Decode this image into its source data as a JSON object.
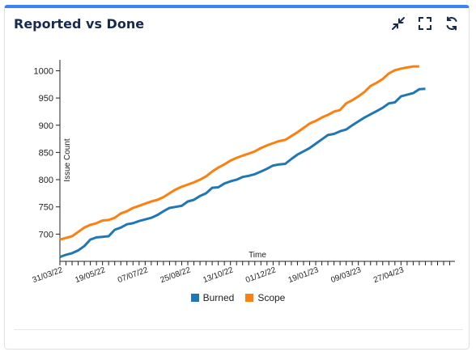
{
  "widget": {
    "title": "Reported vs Done",
    "icons": [
      "minimize-icon",
      "fullscreen-icon",
      "refresh-icon"
    ]
  },
  "colors": {
    "accent": "#3b82f6",
    "burned": "#1f77b4",
    "scope": "#ff7f0e"
  },
  "chart_data": {
    "type": "line",
    "xlabel": "Time",
    "ylabel": "Issue Count",
    "ylim": [
      650,
      1020
    ],
    "yticks": [
      700,
      750,
      800,
      850,
      900,
      950,
      1000
    ],
    "xlim": [
      "2022-03-31",
      "2023-06-28"
    ],
    "xtick_labels": [
      {
        "date": "2022-03-31",
        "label": "31/03/22"
      },
      {
        "date": "2022-05-19",
        "label": "19/05/22"
      },
      {
        "date": "2022-07-07",
        "label": "07/07/22"
      },
      {
        "date": "2022-08-25",
        "label": "25/08/22"
      },
      {
        "date": "2022-10-13",
        "label": "13/10/22"
      },
      {
        "date": "2022-12-01",
        "label": "01/12/22"
      },
      {
        "date": "2023-01-19",
        "label": "19/01/23"
      },
      {
        "date": "2023-03-09",
        "label": "09/03/23"
      },
      {
        "date": "2023-04-27",
        "label": "27/04/23"
      }
    ],
    "grid": false,
    "legend": "bottom-center",
    "series": [
      {
        "name": "Burned",
        "color": "#1f77b4",
        "points": [
          [
            "2022-03-31",
            658
          ],
          [
            "2022-04-07",
            662
          ],
          [
            "2022-04-14",
            665
          ],
          [
            "2022-04-21",
            670
          ],
          [
            "2022-04-28",
            678
          ],
          [
            "2022-05-05",
            690
          ],
          [
            "2022-05-12",
            694
          ],
          [
            "2022-05-19",
            695
          ],
          [
            "2022-05-26",
            696
          ],
          [
            "2022-06-02",
            708
          ],
          [
            "2022-06-09",
            712
          ],
          [
            "2022-06-16",
            718
          ],
          [
            "2022-06-23",
            720
          ],
          [
            "2022-06-30",
            724
          ],
          [
            "2022-07-07",
            727
          ],
          [
            "2022-07-14",
            730
          ],
          [
            "2022-07-21",
            735
          ],
          [
            "2022-07-28",
            742
          ],
          [
            "2022-08-04",
            748
          ],
          [
            "2022-08-11",
            750
          ],
          [
            "2022-08-18",
            752
          ],
          [
            "2022-08-25",
            760
          ],
          [
            "2022-09-01",
            763
          ],
          [
            "2022-09-08",
            770
          ],
          [
            "2022-09-15",
            775
          ],
          [
            "2022-09-22",
            785
          ],
          [
            "2022-09-29",
            786
          ],
          [
            "2022-10-06",
            793
          ],
          [
            "2022-10-13",
            797
          ],
          [
            "2022-10-20",
            800
          ],
          [
            "2022-10-27",
            805
          ],
          [
            "2022-11-03",
            807
          ],
          [
            "2022-11-10",
            810
          ],
          [
            "2022-11-17",
            815
          ],
          [
            "2022-11-24",
            820
          ],
          [
            "2022-12-01",
            826
          ],
          [
            "2022-12-08",
            828
          ],
          [
            "2022-12-15",
            829
          ],
          [
            "2022-12-22",
            838
          ],
          [
            "2022-12-29",
            846
          ],
          [
            "2023-01-05",
            852
          ],
          [
            "2023-01-12",
            858
          ],
          [
            "2023-01-19",
            866
          ],
          [
            "2023-01-26",
            874
          ],
          [
            "2023-02-02",
            882
          ],
          [
            "2023-02-09",
            884
          ],
          [
            "2023-02-16",
            889
          ],
          [
            "2023-02-23",
            892
          ],
          [
            "2023-03-02",
            900
          ],
          [
            "2023-03-09",
            907
          ],
          [
            "2023-03-16",
            914
          ],
          [
            "2023-03-23",
            920
          ],
          [
            "2023-03-30",
            926
          ],
          [
            "2023-04-06",
            932
          ],
          [
            "2023-04-13",
            940
          ],
          [
            "2023-04-20",
            942
          ],
          [
            "2023-04-27",
            953
          ],
          [
            "2023-05-04",
            956
          ],
          [
            "2023-05-11",
            959
          ],
          [
            "2023-05-18",
            966
          ],
          [
            "2023-05-25",
            967
          ]
        ]
      },
      {
        "name": "Scope",
        "color": "#ff7f0e",
        "points": [
          [
            "2022-03-31",
            690
          ],
          [
            "2022-04-07",
            693
          ],
          [
            "2022-04-14",
            696
          ],
          [
            "2022-04-21",
            704
          ],
          [
            "2022-04-28",
            712
          ],
          [
            "2022-05-05",
            717
          ],
          [
            "2022-05-12",
            720
          ],
          [
            "2022-05-19",
            725
          ],
          [
            "2022-05-26",
            726
          ],
          [
            "2022-06-02",
            730
          ],
          [
            "2022-06-09",
            738
          ],
          [
            "2022-06-16",
            742
          ],
          [
            "2022-06-23",
            748
          ],
          [
            "2022-06-30",
            752
          ],
          [
            "2022-07-07",
            756
          ],
          [
            "2022-07-14",
            760
          ],
          [
            "2022-07-21",
            763
          ],
          [
            "2022-07-28",
            768
          ],
          [
            "2022-08-04",
            775
          ],
          [
            "2022-08-11",
            782
          ],
          [
            "2022-08-18",
            787
          ],
          [
            "2022-08-25",
            791
          ],
          [
            "2022-09-01",
            795
          ],
          [
            "2022-09-08",
            800
          ],
          [
            "2022-09-15",
            806
          ],
          [
            "2022-09-22",
            815
          ],
          [
            "2022-09-29",
            822
          ],
          [
            "2022-10-06",
            828
          ],
          [
            "2022-10-13",
            835
          ],
          [
            "2022-10-20",
            840
          ],
          [
            "2022-10-27",
            844
          ],
          [
            "2022-11-03",
            848
          ],
          [
            "2022-11-10",
            852
          ],
          [
            "2022-11-17",
            858
          ],
          [
            "2022-11-24",
            863
          ],
          [
            "2022-12-01",
            867
          ],
          [
            "2022-12-08",
            871
          ],
          [
            "2022-12-15",
            873
          ],
          [
            "2022-12-22",
            880
          ],
          [
            "2022-12-29",
            887
          ],
          [
            "2023-01-05",
            895
          ],
          [
            "2023-01-12",
            903
          ],
          [
            "2023-01-19",
            908
          ],
          [
            "2023-01-26",
            914
          ],
          [
            "2023-02-02",
            919
          ],
          [
            "2023-02-09",
            925
          ],
          [
            "2023-02-16",
            928
          ],
          [
            "2023-02-23",
            940
          ],
          [
            "2023-03-02",
            946
          ],
          [
            "2023-03-09",
            953
          ],
          [
            "2023-03-16",
            961
          ],
          [
            "2023-03-23",
            972
          ],
          [
            "2023-03-30",
            978
          ],
          [
            "2023-04-06",
            985
          ],
          [
            "2023-04-13",
            995
          ],
          [
            "2023-04-20",
            1001
          ],
          [
            "2023-04-27",
            1004
          ],
          [
            "2023-05-04",
            1006
          ],
          [
            "2023-05-11",
            1008
          ],
          [
            "2023-05-18",
            1008
          ]
        ]
      }
    ]
  }
}
